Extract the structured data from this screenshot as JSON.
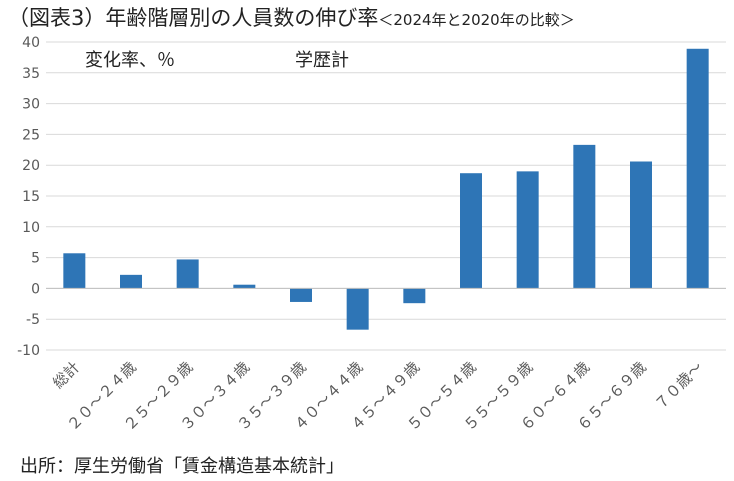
{
  "title": {
    "main": "（図表3）年齢階層別の人員数の伸び率",
    "sub": "＜2024年と2020年の比較＞"
  },
  "source": "出所：厚生労働省「賃金構造基本統計」",
  "chart_data": {
    "type": "bar",
    "title": "（図表3）年齢階層別の人員数の伸び率＜2024年と2020年の比較＞",
    "ylabel": "変化率、％",
    "series_label": "学歴計",
    "categories": [
      "総計",
      "２０～２４歳",
      "２５～２９歳",
      "３０～３４歳",
      "３５～３９歳",
      "４０～４４歳",
      "４５～４９歳",
      "５０～５４歳",
      "５５～５９歳",
      "６０～６４歳",
      "６５～６９歳",
      "７０歳～"
    ],
    "series": [
      {
        "name": "学歴計",
        "values": [
          5.7,
          2.2,
          4.7,
          0.6,
          -2.2,
          -6.7,
          -2.4,
          18.7,
          19.0,
          23.3,
          20.6,
          38.9
        ]
      }
    ],
    "ylim": [
      -10,
      40
    ],
    "yticks": [
      -10,
      -5,
      0,
      5,
      10,
      15,
      20,
      25,
      30,
      35,
      40
    ],
    "grid": true,
    "legend": "none",
    "bar_color": "#2E75B6",
    "grid_color": "#D9D9D9",
    "tick_label_color": "#595959"
  }
}
